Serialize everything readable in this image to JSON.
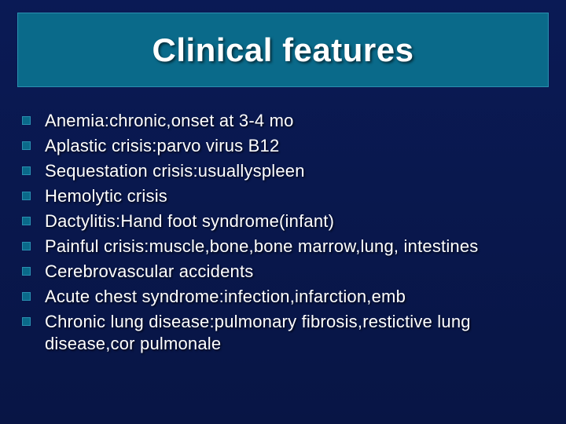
{
  "title": "Clinical features",
  "style": {
    "background_top": "#0a1a55",
    "background_bottom": "#081545",
    "title_box_bg": "#0a6a8a",
    "title_box_border": "#2a8fb0",
    "title_color": "#ffffff",
    "title_fontsize": 42,
    "bullet_bg": "#0a6a8a",
    "bullet_border": "#2a8fb0",
    "bullet_size": 11,
    "item_color": "#ffffff",
    "item_fontsize": 22,
    "item_lineheight": 28,
    "shadow_color": "rgba(0,0,0,0.7)"
  },
  "items": [
    "Anemia:chronic,onset at 3-4 mo",
    "Aplastic crisis:parvo virus B12",
    "Sequestation crisis:usuallyspleen",
    "Hemolytic crisis",
    "Dactylitis:Hand foot syndrome(infant)",
    "Painful crisis:muscle,bone,bone marrow,lung, intestines",
    "Cerebrovascular accidents",
    "Acute chest syndrome:infection,infarction,emb",
    "Chronic lung disease:pulmonary fibrosis,restictive   lung disease,cor pulmonale"
  ]
}
